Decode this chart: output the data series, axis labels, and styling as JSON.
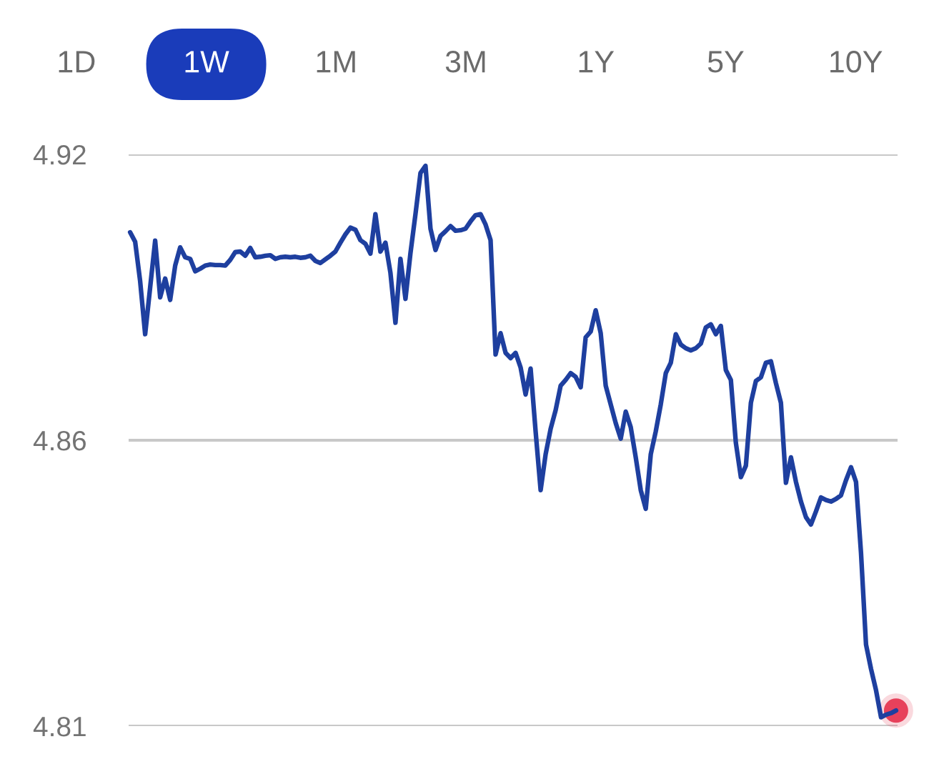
{
  "chart_data": [
    {
      "type": "other",
      "categories": [
        "1D",
        "1W",
        "1M",
        "3M",
        "1Y",
        "5Y",
        "10Y"
      ],
      "colors": [
        null,
        "#1a3cba",
        null,
        null,
        null,
        null,
        null
      ]
    },
    {
      "type": "line",
      "categories": [
        null,
        null,
        null,
        null,
        null,
        null,
        null,
        null,
        null,
        null,
        null,
        null,
        null,
        null,
        null,
        null,
        null,
        null,
        null,
        null,
        null,
        null,
        null,
        null,
        null,
        null,
        null,
        null,
        null,
        null,
        null,
        null,
        null,
        null,
        null,
        null,
        null,
        null,
        null,
        null,
        null,
        null,
        null,
        null,
        null,
        null,
        null,
        null,
        null,
        null,
        null,
        null,
        null,
        null,
        null,
        null,
        null,
        null,
        null,
        null,
        null,
        null,
        null,
        null,
        null,
        null,
        null,
        null,
        null,
        null,
        null,
        null,
        null,
        null,
        null,
        null,
        null,
        null,
        null,
        null,
        null,
        null,
        null,
        null,
        null,
        null,
        null,
        null,
        null,
        null,
        null,
        null,
        null,
        null,
        null,
        null,
        null,
        null,
        null,
        null,
        null,
        null,
        null,
        null,
        null,
        null,
        null,
        null,
        null,
        null,
        null,
        null,
        null,
        null,
        null,
        null,
        null,
        null,
        null,
        null,
        null,
        null,
        null,
        null,
        null,
        null,
        null,
        null,
        null,
        null,
        null,
        null,
        null,
        null,
        null,
        null,
        null,
        null,
        null,
        null,
        null,
        null,
        null,
        null,
        null,
        null,
        null,
        null,
        null,
        null,
        null,
        null,
        null,
        null
      ],
      "series": [
        {
          "color": "#1e3f9f",
          "values": [
            4.905,
            4.9032,
            4.8956,
            4.8854,
            4.8944,
            4.9034,
            4.8925,
            4.8961,
            4.892,
            4.8986,
            4.9021,
            4.9002,
            4.8999,
            4.8975,
            4.898,
            4.8986,
            4.8988,
            4.8987,
            4.8987,
            4.8986,
            4.8997,
            4.9012,
            4.9013,
            4.9005,
            4.902,
            4.9002,
            4.9003,
            4.9005,
            4.9006,
            4.8999,
            4.9002,
            4.9003,
            4.9002,
            4.9003,
            4.9001,
            4.9002,
            4.9005,
            4.8995,
            4.8991,
            4.8998,
            4.9005,
            4.9013,
            4.903,
            4.9046,
            4.9059,
            4.9055,
            4.9035,
            4.9028,
            4.9009,
            4.9085,
            4.9013,
            4.903,
            4.8972,
            4.8876,
            4.8999,
            4.8922,
            4.901,
            4.9085,
            4.9164,
            4.9178,
            4.9057,
            4.9016,
            4.9043,
            4.9052,
            4.9062,
            4.9053,
            4.9054,
            4.9057,
            4.9071,
            4.9083,
            4.9085,
            4.9065,
            4.9035,
            4.8815,
            4.8856,
            4.8818,
            4.8808,
            4.8818,
            4.879,
            4.8738,
            4.8788,
            4.8667,
            4.8554,
            4.8623,
            4.8672,
            4.8708,
            4.8755,
            4.8766,
            4.8779,
            4.8772,
            4.8752,
            4.8848,
            4.8859,
            4.89,
            4.8856,
            4.8755,
            4.8719,
            4.8683,
            4.8653,
            4.8705,
            4.8675,
            4.8617,
            4.8554,
            4.8518,
            4.8623,
            4.8667,
            4.8719,
            4.8779,
            4.8799,
            4.8854,
            4.8834,
            4.8827,
            4.8823,
            4.8827,
            4.8836,
            4.8867,
            4.8873,
            4.8854,
            4.887,
            4.8785,
            4.8766,
            4.8645,
            4.8579,
            4.8601,
            4.8722,
            4.8764,
            4.8771,
            4.8799,
            4.8802,
            4.876,
            4.8722,
            4.8568,
            4.8617,
            4.857,
            4.8532,
            4.8502,
            4.8488,
            4.8513,
            4.854,
            4.8535,
            4.8532,
            4.8537,
            4.8544,
            4.8573,
            4.8598,
            4.857,
            4.8433,
            4.8257,
            4.821,
            4.8169,
            4.8117,
            4.8122,
            4.8125,
            4.813
          ]
        },
        {
          "type": "scatter",
          "color": "#e8415c",
          "values": [
            null,
            null,
            null,
            null,
            null,
            null,
            null,
            null,
            null,
            null,
            null,
            null,
            null,
            null,
            null,
            null,
            null,
            null,
            null,
            null,
            null,
            null,
            null,
            null,
            null,
            null,
            null,
            null,
            null,
            null,
            null,
            null,
            null,
            null,
            null,
            null,
            null,
            null,
            null,
            null,
            null,
            null,
            null,
            null,
            null,
            null,
            null,
            null,
            null,
            null,
            null,
            null,
            null,
            null,
            null,
            null,
            null,
            null,
            null,
            null,
            null,
            null,
            null,
            null,
            null,
            null,
            null,
            null,
            null,
            null,
            null,
            null,
            null,
            null,
            null,
            null,
            null,
            null,
            null,
            null,
            null,
            null,
            null,
            null,
            null,
            null,
            null,
            null,
            null,
            null,
            null,
            null,
            null,
            null,
            null,
            null,
            null,
            null,
            null,
            null,
            null,
            null,
            null,
            null,
            null,
            null,
            null,
            null,
            null,
            null,
            null,
            null,
            null,
            null,
            null,
            null,
            null,
            null,
            null,
            null,
            null,
            null,
            null,
            null,
            null,
            null,
            null,
            null,
            null,
            null,
            null,
            null,
            null,
            null,
            null,
            null,
            null,
            null,
            null,
            null,
            null,
            null,
            null,
            null,
            null,
            null,
            null,
            null,
            null,
            null,
            null,
            null,
            null,
            4.813
          ]
        }
      ],
      "ylim": [
        4.81,
        4.92
      ],
      "yticks": [
        4.92,
        {
          "value": 4.865,
          "label": "4.86"
        },
        4.81
      ],
      "grid": "y",
      "tick_labels": "y"
    }
  ]
}
